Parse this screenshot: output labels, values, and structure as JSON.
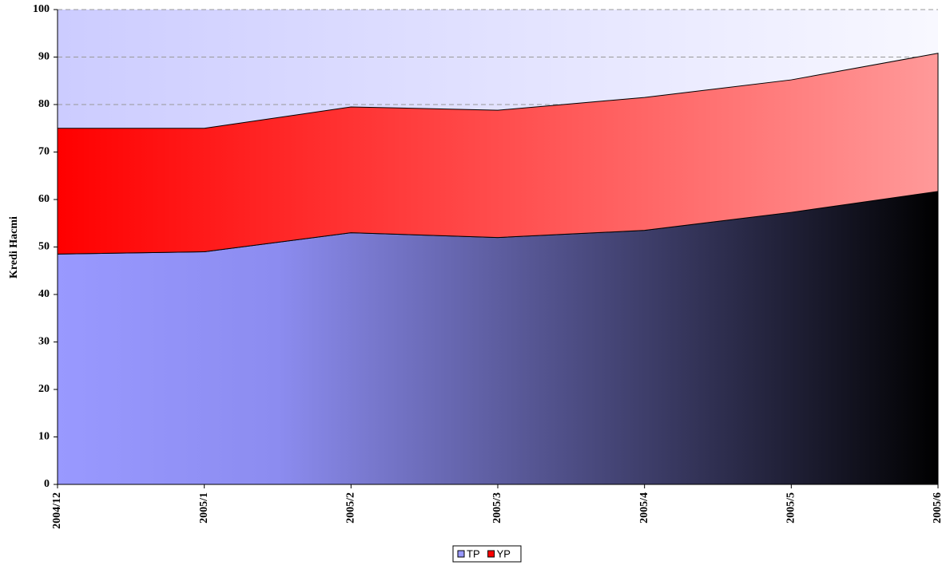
{
  "chart_data": {
    "type": "stacked_area",
    "ylabel": "Kredi Hacmi",
    "categories": [
      "2004/12",
      "2005/1",
      "2005/2",
      "2005/3",
      "2005/4",
      "2005/5",
      "2005/6"
    ],
    "series": [
      {
        "name": "TP",
        "color": "#9999ff",
        "values": [
          48.5,
          49,
          53,
          52,
          53.5,
          57.3,
          61.7
        ]
      },
      {
        "name": "YP",
        "color": "#ff0000",
        "values": [
          26.5,
          26,
          26.5,
          26.8,
          28,
          27.9,
          29.1
        ]
      }
    ],
    "ylim": [
      0,
      100
    ],
    "yticks": [
      0,
      10,
      20,
      30,
      40,
      50,
      60,
      70,
      80,
      90,
      100
    ],
    "grid": true,
    "legend": "bottom"
  }
}
